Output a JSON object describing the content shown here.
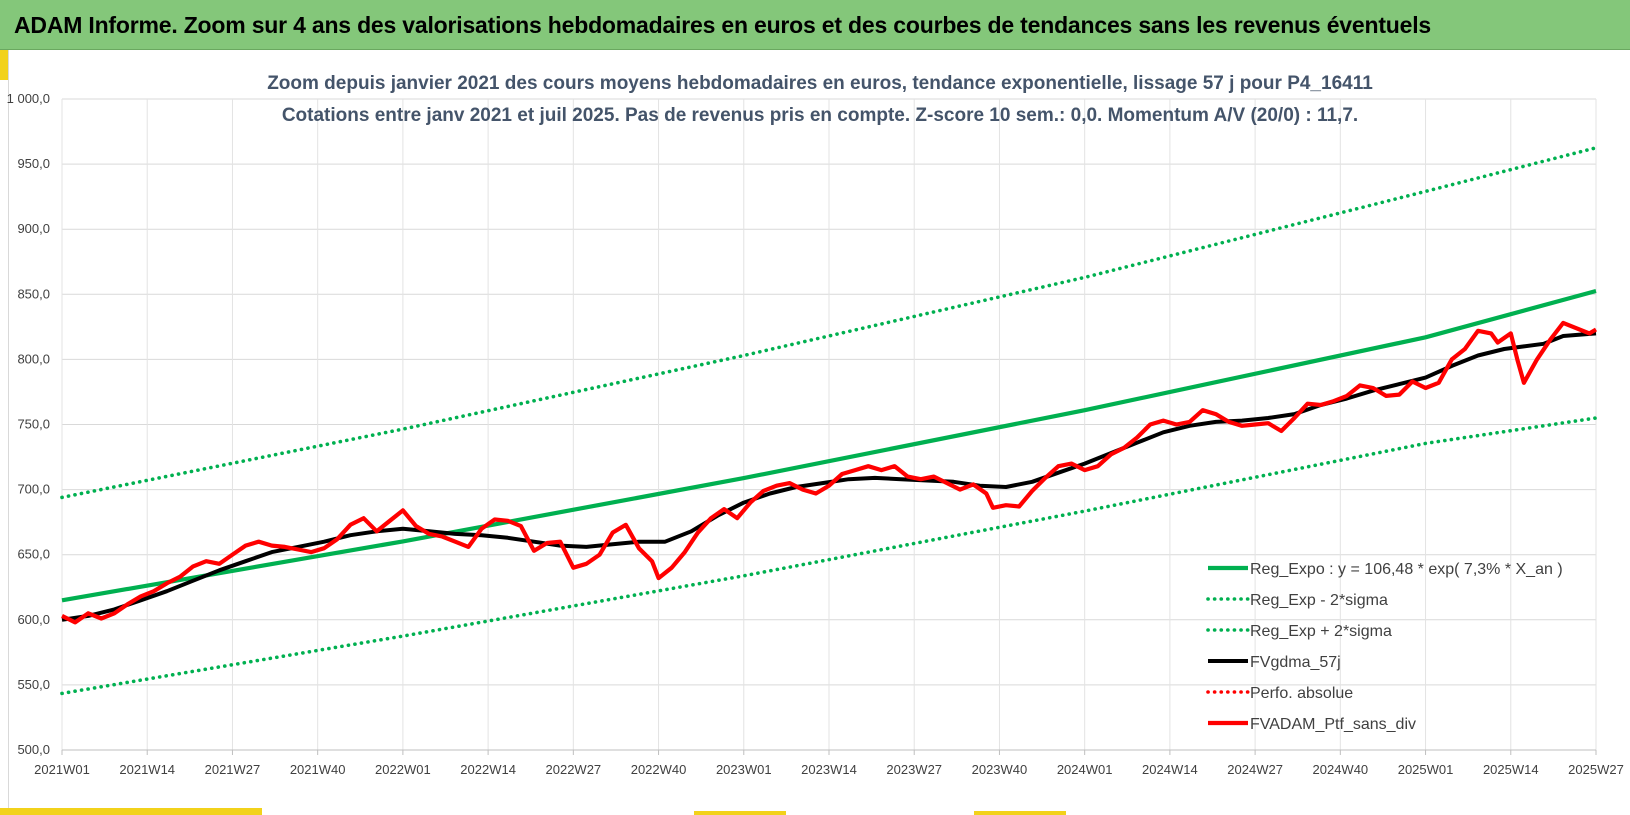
{
  "banner": {
    "title": "ADAM Informe. Zoom sur 4 ans des valorisations hebdomadaires en euros et des courbes de tendances sans les revenus éventuels"
  },
  "colors": {
    "banner_bg": "#84c77a",
    "accent_yellow": "#f2d21b",
    "trend_green": "#00b050",
    "ma_black": "#000000",
    "perf_red": "#ff0000"
  },
  "chart_data": {
    "type": "line",
    "title": "Zoom depuis janvier 2021 des cours moyens hebdomadaires  en euros, tendance exponentielle, lissage 57 j pour P4_16411",
    "subtitle": "Cotations entre janv 2021 et juil 2025. Pas de revenus pris en compte. Z-score 10 sem.: 0,0. Momentum A/V (20/0) : 11,7.",
    "xlabel": "",
    "ylabel": "",
    "ylim": [
      500,
      1000
    ],
    "y_ticks": [
      "500,0",
      "550,0",
      "600,0",
      "650,0",
      "700,0",
      "750,0",
      "800,0",
      "850,0",
      "900,0",
      "950,0",
      "1 000,0"
    ],
    "x_ticks": [
      "2021W01",
      "2021W14",
      "2021W27",
      "2021W40",
      "2022W01",
      "2022W14",
      "2022W27",
      "2022W40",
      "2023W01",
      "2023W14",
      "2023W27",
      "2023W40",
      "2024W01",
      "2024W14",
      "2024W27",
      "2024W40",
      "2025W01",
      "2025W14",
      "2025W27"
    ],
    "grid": true,
    "legend_position": "bottom-right",
    "series": [
      {
        "name": "Reg_Expo : y = 106,48 * exp( 7,3% *  X_an )",
        "style": "solid",
        "color": "#00b050",
        "points": [
          [
            "2021W01",
            615.0
          ],
          [
            "2022W01",
            660.2
          ],
          [
            "2023W01",
            708.8
          ],
          [
            "2024W01",
            761.0
          ],
          [
            "2025W01",
            817.0
          ],
          [
            "2025W27",
            852.5
          ]
        ]
      },
      {
        "name": "Reg_Exp - 2*sigma",
        "style": "dotted",
        "color": "#00b050",
        "points": [
          [
            "2021W01",
            543.5
          ],
          [
            "2022W01",
            587.5
          ],
          [
            "2023W01",
            633.8
          ],
          [
            "2024W01",
            683.5
          ],
          [
            "2025W01",
            735.5
          ],
          [
            "2025W27",
            755.0
          ]
        ]
      },
      {
        "name": "Reg_Exp + 2*sigma",
        "style": "dotted",
        "color": "#00b050",
        "points": [
          [
            "2021W01",
            694.0
          ],
          [
            "2022W01",
            746.5
          ],
          [
            "2023W01",
            803.0
          ],
          [
            "2024W01",
            863.0
          ],
          [
            "2025W01",
            929.0
          ],
          [
            "2025W27",
            962.5
          ]
        ]
      },
      {
        "name": "FVgdma_57j",
        "style": "solid",
        "color": "#000000",
        "points": [
          [
            "2021W01",
            600.0
          ],
          [
            "2021W05",
            603.0
          ],
          [
            "2021W09",
            608.0
          ],
          [
            "2021W13",
            615.0
          ],
          [
            "2021W17",
            622.0
          ],
          [
            "2021W21",
            630.0
          ],
          [
            "2021W25",
            638.0
          ],
          [
            "2021W29",
            645.0
          ],
          [
            "2021W33",
            652.0
          ],
          [
            "2021W37",
            656.0
          ],
          [
            "2021W41",
            660.0
          ],
          [
            "2021W45",
            665.0
          ],
          [
            "2021W49",
            668.0
          ],
          [
            "2022W01",
            670.0
          ],
          [
            "2022W05",
            668.0
          ],
          [
            "2022W09",
            666.0
          ],
          [
            "2022W13",
            665.0
          ],
          [
            "2022W17",
            663.0
          ],
          [
            "2022W21",
            660.0
          ],
          [
            "2022W25",
            657.0
          ],
          [
            "2022W29",
            656.0
          ],
          [
            "2022W33",
            658.0
          ],
          [
            "2022W37",
            660.0
          ],
          [
            "2022W41",
            660.0
          ],
          [
            "2022W45",
            668.0
          ],
          [
            "2022W49",
            680.0
          ],
          [
            "2023W01",
            690.0
          ],
          [
            "2023W05",
            697.0
          ],
          [
            "2023W09",
            702.0
          ],
          [
            "2023W13",
            705.0
          ],
          [
            "2023W17",
            708.0
          ],
          [
            "2023W21",
            709.0
          ],
          [
            "2023W25",
            708.0
          ],
          [
            "2023W29",
            707.0
          ],
          [
            "2023W33",
            706.0
          ],
          [
            "2023W37",
            703.0
          ],
          [
            "2023W41",
            702.0
          ],
          [
            "2023W45",
            706.0
          ],
          [
            "2023W49",
            713.0
          ],
          [
            "2024W01",
            720.0
          ],
          [
            "2024W05",
            728.0
          ],
          [
            "2024W09",
            736.0
          ],
          [
            "2024W13",
            744.0
          ],
          [
            "2024W17",
            749.0
          ],
          [
            "2024W21",
            752.0
          ],
          [
            "2024W25",
            753.0
          ],
          [
            "2024W29",
            755.0
          ],
          [
            "2024W33",
            758.0
          ],
          [
            "2024W37",
            765.0
          ],
          [
            "2024W41",
            770.0
          ],
          [
            "2024W45",
            776.0
          ],
          [
            "2024W49",
            781.0
          ],
          [
            "2025W01",
            786.0
          ],
          [
            "2025W05",
            795.0
          ],
          [
            "2025W09",
            803.0
          ],
          [
            "2025W13",
            808.0
          ],
          [
            "2025W16",
            810.0
          ],
          [
            "2025W19",
            812.0
          ],
          [
            "2025W22",
            818.0
          ],
          [
            "2025W27",
            820.0
          ]
        ]
      },
      {
        "name": "Perfo. absolue",
        "style": "dotted",
        "color": "#ff0000",
        "points": []
      },
      {
        "name": "FVADAM_Ptf_sans_div",
        "style": "solid",
        "color": "#ff0000",
        "points": [
          [
            "2021W01",
            603.0
          ],
          [
            "2021W03",
            598.0
          ],
          [
            "2021W05",
            605.0
          ],
          [
            "2021W07",
            601.0
          ],
          [
            "2021W09",
            605.0
          ],
          [
            "2021W11",
            612.0
          ],
          [
            "2021W13",
            618.0
          ],
          [
            "2021W15",
            622.0
          ],
          [
            "2021W17",
            628.0
          ],
          [
            "2021W19",
            633.0
          ],
          [
            "2021W21",
            641.0
          ],
          [
            "2021W23",
            645.0
          ],
          [
            "2021W25",
            643.0
          ],
          [
            "2021W27",
            650.0
          ],
          [
            "2021W29",
            657.0
          ],
          [
            "2021W31",
            660.0
          ],
          [
            "2021W33",
            657.0
          ],
          [
            "2021W35",
            656.0
          ],
          [
            "2021W37",
            654.0
          ],
          [
            "2021W39",
            652.0
          ],
          [
            "2021W41",
            655.0
          ],
          [
            "2021W43",
            662.0
          ],
          [
            "2021W45",
            673.0
          ],
          [
            "2021W47",
            678.0
          ],
          [
            "2021W49",
            668.0
          ],
          [
            "2021W51",
            676.0
          ],
          [
            "2022W01",
            684.0
          ],
          [
            "2022W03",
            672.0
          ],
          [
            "2022W05",
            666.0
          ],
          [
            "2022W07",
            664.0
          ],
          [
            "2022W09",
            660.0
          ],
          [
            "2022W11",
            656.0
          ],
          [
            "2022W13",
            670.0
          ],
          [
            "2022W15",
            677.0
          ],
          [
            "2022W17",
            676.0
          ],
          [
            "2022W19",
            672.0
          ],
          [
            "2022W21",
            653.0
          ],
          [
            "2022W23",
            659.0
          ],
          [
            "2022W25",
            660.0
          ],
          [
            "2022W27",
            640.0
          ],
          [
            "2022W29",
            643.0
          ],
          [
            "2022W31",
            650.0
          ],
          [
            "2022W33",
            667.0
          ],
          [
            "2022W35",
            673.0
          ],
          [
            "2022W37",
            655.0
          ],
          [
            "2022W39",
            645.0
          ],
          [
            "2022W40",
            632.0
          ],
          [
            "2022W42",
            640.0
          ],
          [
            "2022W44",
            652.0
          ],
          [
            "2022W46",
            667.0
          ],
          [
            "2022W48",
            678.0
          ],
          [
            "2022W50",
            685.0
          ],
          [
            "2022W52",
            678.0
          ],
          [
            "2023W02",
            690.0
          ],
          [
            "2023W04",
            699.0
          ],
          [
            "2023W06",
            703.0
          ],
          [
            "2023W08",
            705.0
          ],
          [
            "2023W10",
            700.0
          ],
          [
            "2023W12",
            697.0
          ],
          [
            "2023W14",
            703.0
          ],
          [
            "2023W16",
            712.0
          ],
          [
            "2023W18",
            715.0
          ],
          [
            "2023W20",
            718.0
          ],
          [
            "2023W22",
            715.0
          ],
          [
            "2023W24",
            718.0
          ],
          [
            "2023W26",
            710.0
          ],
          [
            "2023W28",
            708.0
          ],
          [
            "2023W30",
            710.0
          ],
          [
            "2023W32",
            705.0
          ],
          [
            "2023W34",
            700.0
          ],
          [
            "2023W36",
            704.0
          ],
          [
            "2023W38",
            697.0
          ],
          [
            "2023W39",
            686.0
          ],
          [
            "2023W41",
            688.0
          ],
          [
            "2023W43",
            687.0
          ],
          [
            "2023W45",
            699.0
          ],
          [
            "2023W47",
            709.0
          ],
          [
            "2023W49",
            718.0
          ],
          [
            "2023W51",
            720.0
          ],
          [
            "2024W01",
            715.0
          ],
          [
            "2024W03",
            718.0
          ],
          [
            "2024W05",
            727.0
          ],
          [
            "2024W07",
            732.0
          ],
          [
            "2024W09",
            740.0
          ],
          [
            "2024W11",
            750.0
          ],
          [
            "2024W13",
            753.0
          ],
          [
            "2024W15",
            750.0
          ],
          [
            "2024W17",
            752.0
          ],
          [
            "2024W19",
            761.0
          ],
          [
            "2024W21",
            758.0
          ],
          [
            "2024W23",
            752.0
          ],
          [
            "2024W25",
            749.0
          ],
          [
            "2024W27",
            750.0
          ],
          [
            "2024W29",
            751.0
          ],
          [
            "2024W31",
            745.0
          ],
          [
            "2024W33",
            755.0
          ],
          [
            "2024W35",
            766.0
          ],
          [
            "2024W37",
            765.0
          ],
          [
            "2024W39",
            768.0
          ],
          [
            "2024W41",
            772.0
          ],
          [
            "2024W43",
            780.0
          ],
          [
            "2024W45",
            778.0
          ],
          [
            "2024W47",
            772.0
          ],
          [
            "2024W49",
            773.0
          ],
          [
            "2024W51",
            783.0
          ],
          [
            "2025W01",
            778.0
          ],
          [
            "2025W03",
            782.0
          ],
          [
            "2025W05",
            800.0
          ],
          [
            "2025W07",
            808.0
          ],
          [
            "2025W09",
            822.0
          ],
          [
            "2025W11",
            820.0
          ],
          [
            "2025W12",
            813.0
          ],
          [
            "2025W14",
            820.0
          ],
          [
            "2025W15",
            800.0
          ],
          [
            "2025W16",
            782.0
          ],
          [
            "2025W18",
            800.0
          ],
          [
            "2025W20",
            815.0
          ],
          [
            "2025W22",
            828.0
          ],
          [
            "2025W24",
            824.0
          ],
          [
            "2025W26",
            820.0
          ],
          [
            "2025W27",
            823.0
          ]
        ]
      }
    ]
  }
}
